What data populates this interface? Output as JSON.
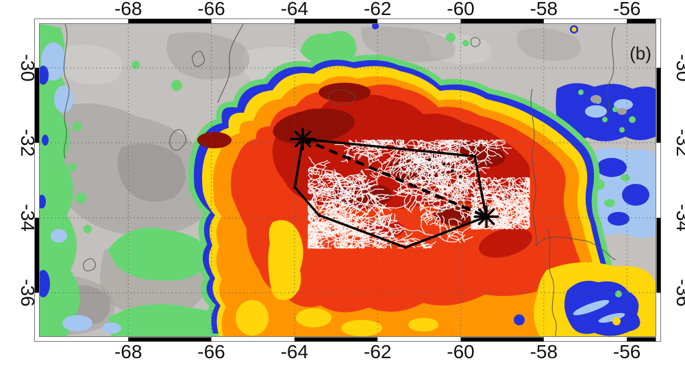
{
  "figure": {
    "panel_label": "(b)",
    "type": "satellite-infrared-map-with-lightning-overlay"
  },
  "map": {
    "extent": {
      "lon_min": -70.13,
      "lon_max": -55.31,
      "lat_min": -37.16,
      "lat_max": -28.83
    },
    "axes": {
      "lon_ticks": [
        -68,
        -66,
        -64,
        -62,
        -60,
        -58,
        -56
      ],
      "lat_ticks": [
        -30,
        -32,
        -34,
        -36
      ],
      "gridline_interval_deg": 2
    },
    "overlays": {
      "analysis_polygon_lonlat": [
        [
          -63.8,
          -31.9
        ],
        [
          -59.66,
          -32.36
        ],
        [
          -59.48,
          -33.42
        ],
        [
          -59.38,
          -33.97
        ],
        [
          -61.33,
          -34.79
        ],
        [
          -63.41,
          -33.93
        ],
        [
          -63.99,
          -33.19
        ]
      ],
      "asterisk_markers_lonlat": [
        [
          -63.8,
          -31.9
        ],
        [
          -59.38,
          -33.97
        ]
      ],
      "dashed_track_lonlat": [
        [
          -63.8,
          -31.9
        ],
        [
          -59.38,
          -33.97
        ]
      ],
      "track_dots_lonlat": [
        [
          -60.4,
          -32.57
        ],
        [
          -60.2,
          -32.75
        ],
        [
          -60.0,
          -32.9
        ],
        [
          -60.75,
          -32.45
        ]
      ]
    },
    "palette": {
      "background_gray": "#c3c0bd",
      "gray_dark": "#a4a09d",
      "gray_darker": "#908c89",
      "gray_light": "#d6d3d0",
      "green": "#67d672",
      "light_blue": "#a5c6f1",
      "blue": "#2433dd",
      "yellow": "#ffd60a",
      "orange": "#ff9500",
      "red": "#ee3a12",
      "red_dark": "#c01708",
      "maroon": "#8e0f06",
      "border_line": "#4d4d4d",
      "grid_line": "#5a5a5a",
      "lightning": "#ffffff",
      "annotation": "#000000"
    }
  }
}
